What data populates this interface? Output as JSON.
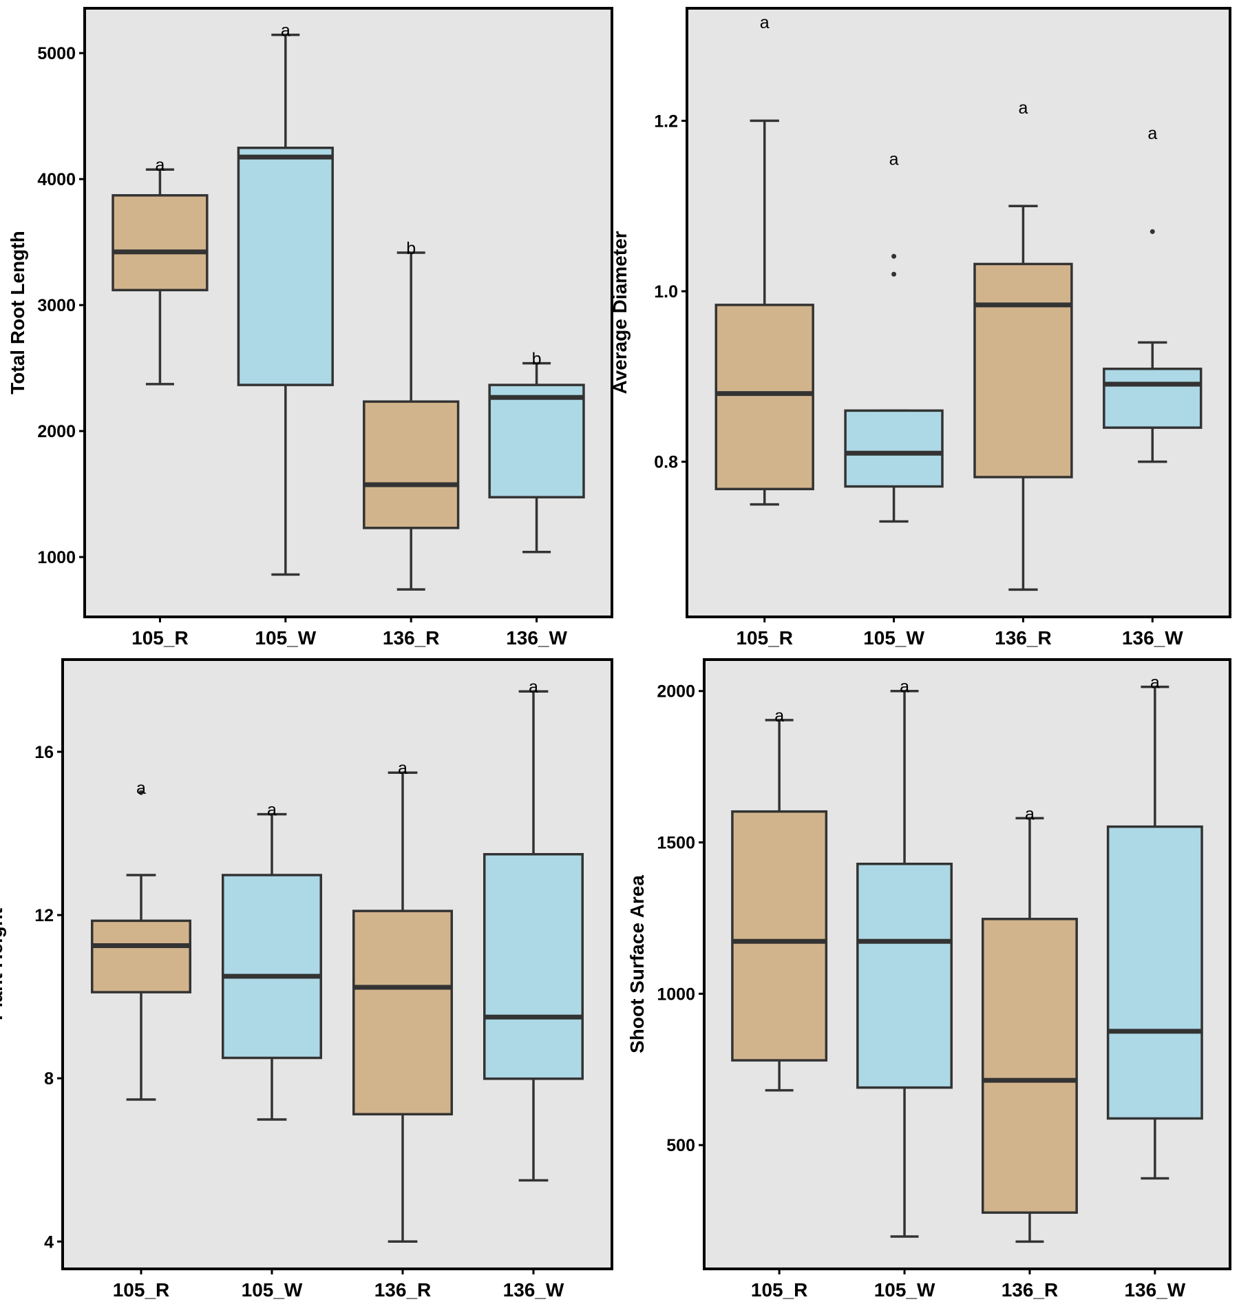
{
  "colors": {
    "panel_bg": "#E5E5E5",
    "R": "#D2B48C",
    "W": "#ADD8E6",
    "line": "#333333"
  },
  "chart_data": [
    {
      "type": "boxplot",
      "ylabel": "Total Root Length",
      "categories": [
        "105_R",
        "105_W",
        "136_R",
        "136_W"
      ],
      "fill_groups": [
        "R",
        "W",
        "R",
        "W"
      ],
      "ylim": [
        525,
        5356
      ],
      "yticks": [
        1000,
        2000,
        3000,
        4000,
        5000
      ],
      "grid": false,
      "boxes": [
        {
          "lower": 2373,
          "q1": 3119,
          "median": 3422,
          "q3": 3871,
          "upper": 4076,
          "outliers": [],
          "letter": "a",
          "letter_y": 4076
        },
        {
          "lower": 861,
          "q1": 2366,
          "median": 4175,
          "q3": 4248,
          "upper": 5145,
          "outliers": [],
          "letter": "a",
          "letter_y": 5145
        },
        {
          "lower": 743,
          "q1": 1231,
          "median": 1574,
          "q3": 2234,
          "upper": 3416,
          "outliers": [],
          "letter": "b",
          "letter_y": 3416
        },
        {
          "lower": 1040,
          "q1": 1475,
          "median": 2267,
          "q3": 2366,
          "upper": 2538,
          "outliers": [],
          "letter": "b",
          "letter_y": 2538
        }
      ]
    },
    {
      "type": "boxplot",
      "ylabel": "Average Diameter",
      "categories": [
        "105_R",
        "105_W",
        "136_R",
        "136_W"
      ],
      "fill_groups": [
        "R",
        "W",
        "R",
        "W"
      ],
      "ylim": [
        0.618,
        1.332
      ],
      "yticks": [
        0.8,
        1.0,
        1.2
      ],
      "ytick_labels": [
        "0.8",
        "1.0",
        "1.2"
      ],
      "grid": false,
      "boxes": [
        {
          "lower": 0.75,
          "q1": 0.768,
          "median": 0.88,
          "q3": 0.984,
          "upper": 1.2,
          "outliers": [],
          "letter": "a",
          "letter_y": 1.31
        },
        {
          "lower": 0.73,
          "q1": 0.771,
          "median": 0.81,
          "q3": 0.86,
          "upper": 0.86,
          "outliers": [
            1.041,
            1.02
          ],
          "letter": "a",
          "letter_y": 1.15
        },
        {
          "lower": 0.65,
          "q1": 0.782,
          "median": 0.984,
          "q3": 1.032,
          "upper": 1.1,
          "outliers": [],
          "letter": "a",
          "letter_y": 1.21
        },
        {
          "lower": 0.8,
          "q1": 0.84,
          "median": 0.891,
          "q3": 0.909,
          "upper": 0.94,
          "outliers": [
            1.07
          ],
          "letter": "a",
          "letter_y": 1.18
        }
      ]
    },
    {
      "type": "boxplot",
      "ylabel": "Plant Height",
      "categories": [
        "105_R",
        "105_W",
        "136_R",
        "136_W"
      ],
      "fill_groups": [
        "R",
        "W",
        "R",
        "W"
      ],
      "ylim": [
        3.33,
        18.26
      ],
      "yticks": [
        4,
        8,
        12,
        16
      ],
      "grid": false,
      "boxes": [
        {
          "lower": 7.48,
          "q1": 10.11,
          "median": 11.25,
          "q3": 11.86,
          "upper": 12.98,
          "outliers": [
            15.0
          ],
          "letter": "a",
          "letter_y": 15.0
        },
        {
          "lower": 6.99,
          "q1": 8.5,
          "median": 10.5,
          "q3": 12.98,
          "upper": 14.47,
          "outliers": [],
          "letter": "a",
          "letter_y": 14.47
        },
        {
          "lower": 4.0,
          "q1": 7.12,
          "median": 10.23,
          "q3": 12.1,
          "upper": 15.49,
          "outliers": [],
          "letter": "a",
          "letter_y": 15.49
        },
        {
          "lower": 5.5,
          "q1": 7.99,
          "median": 9.5,
          "q3": 13.49,
          "upper": 17.48,
          "outliers": [],
          "letter": "a",
          "letter_y": 17.48
        }
      ]
    },
    {
      "type": "boxplot",
      "ylabel": "Shoot Surface Area",
      "categories": [
        "105_R",
        "105_W",
        "136_R",
        "136_W"
      ],
      "fill_groups": [
        "R",
        "W",
        "R",
        "W"
      ],
      "ylim": [
        91,
        2104
      ],
      "yticks": [
        500,
        1000,
        1500,
        2000
      ],
      "grid": false,
      "boxes": [
        {
          "lower": 681,
          "q1": 780,
          "median": 1173,
          "q3": 1602,
          "upper": 1904,
          "outliers": [],
          "letter": "a",
          "letter_y": 1904
        },
        {
          "lower": 198,
          "q1": 690,
          "median": 1173,
          "q3": 1429,
          "upper": 2000,
          "outliers": [],
          "letter": "a",
          "letter_y": 2000
        },
        {
          "lower": 181,
          "q1": 277,
          "median": 714,
          "q3": 1247,
          "upper": 1580,
          "outliers": [],
          "letter": "a",
          "letter_y": 1580
        },
        {
          "lower": 390,
          "q1": 588,
          "median": 876,
          "q3": 1552,
          "upper": 2014,
          "outliers": [],
          "letter": "a",
          "letter_y": 2014
        }
      ]
    }
  ]
}
